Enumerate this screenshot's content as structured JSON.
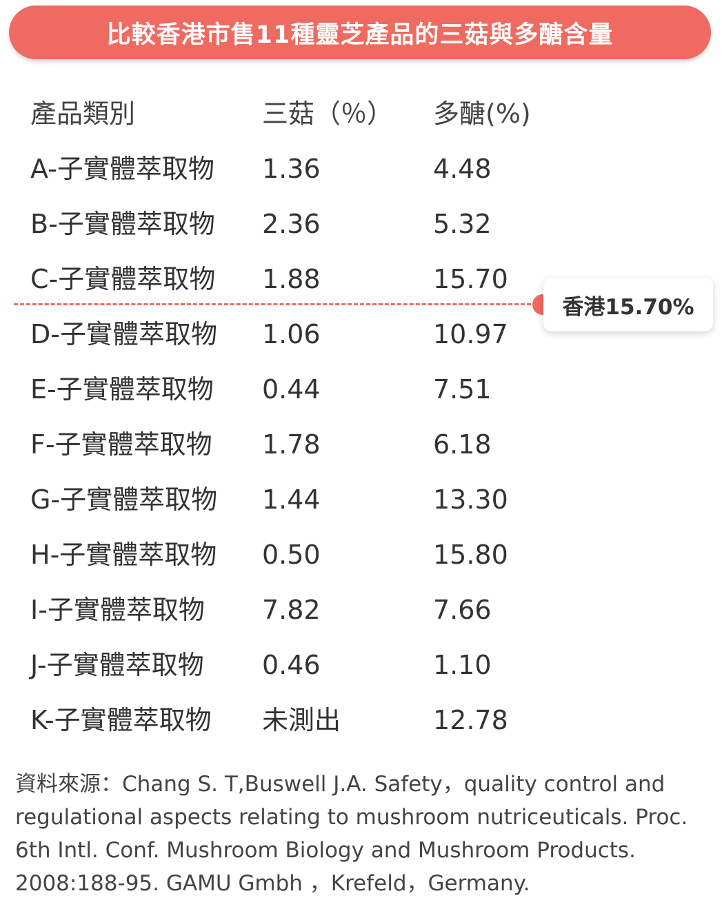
{
  "title": "比較香港市售11種靈芝產品的三菇與多醣含量",
  "chart_data": {
    "type": "table",
    "columns": [
      "產品類別",
      "三菇（％）",
      "多醣(%)"
    ],
    "rows": [
      {
        "category": "A-子實體萃取物",
        "triterpenes": "1.36",
        "polysaccharides": "4.48"
      },
      {
        "category": "B-子實體萃取物",
        "triterpenes": "2.36",
        "polysaccharides": "5.32"
      },
      {
        "category": "C-子實體萃取物",
        "triterpenes": "1.88",
        "polysaccharides": "15.70"
      },
      {
        "category": "D-子實體萃取物",
        "triterpenes": "1.06",
        "polysaccharides": "10.97"
      },
      {
        "category": "E-子實體萃取物",
        "triterpenes": "0.44",
        "polysaccharides": "7.51"
      },
      {
        "category": "F-子實體萃取物",
        "triterpenes": "1.78",
        "polysaccharides": "6.18"
      },
      {
        "category": "G-子實體萃取物",
        "triterpenes": "1.44",
        "polysaccharides": "13.30"
      },
      {
        "category": "H-子實體萃取物",
        "triterpenes": "0.50",
        "polysaccharides": "15.80"
      },
      {
        "category": "I-子實體萃取物",
        "triterpenes": "7.82",
        "polysaccharides": "7.66"
      },
      {
        "category": "J-子實體萃取物",
        "triterpenes": "0.46",
        "polysaccharides": "1.10"
      },
      {
        "category": "K-子實體萃取物",
        "triterpenes": "未測出",
        "polysaccharides": "12.78"
      }
    ],
    "reference_line": {
      "label": "香港15.70%",
      "value": 15.7
    }
  },
  "source": "資料來源：Chang S. T,Buswell J.A. Safety，quality control and regulational aspects relating to mushroom nutriceuticals. Proc. 6th Intl. Conf. Mushroom Biology and Mushroom Products. 2008:188-95. GAMU Gmbh ，Krefeld，Germany.",
  "colors": {
    "accent": "#ef6a60",
    "text": "#333333"
  }
}
